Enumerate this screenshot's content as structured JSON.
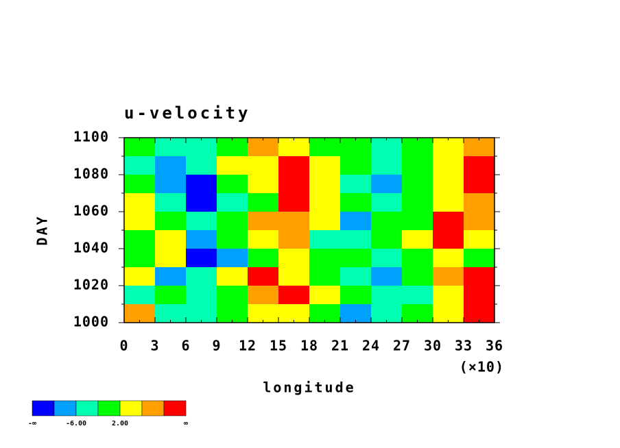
{
  "chart_data": {
    "type": "contour",
    "title": "u-velocity",
    "x_label": "longitude",
    "y_label": "DAY",
    "x_multiplier": "(×10)",
    "xlim": [
      0,
      36
    ],
    "xticks": [
      0,
      3,
      6,
      9,
      12,
      15,
      18,
      21,
      24,
      27,
      30,
      33,
      36
    ],
    "ylim": [
      1000,
      1100
    ],
    "yticks": [
      1000,
      1020,
      1040,
      1060,
      1080,
      1100
    ],
    "x": [
      1.5,
      4.5,
      7.5,
      10.5,
      13.5,
      16.5,
      19.5,
      22.5,
      25.5,
      28.5,
      31.5,
      34.5
    ],
    "y": [
      1095,
      1085,
      1075,
      1065,
      1055,
      1045,
      1035,
      1025,
      1015,
      1005
    ],
    "z": [
      [
        0,
        -4,
        -3,
        1,
        6,
        4,
        0,
        -2,
        -3,
        -1,
        3,
        8
      ],
      [
        -4,
        -8,
        -4,
        2,
        5,
        11,
        3,
        -2,
        -6,
        -1,
        2,
        12
      ],
      [
        1,
        -8,
        -11,
        -2,
        4,
        11,
        2,
        -3,
        -9,
        -2,
        3,
        12
      ],
      [
        2,
        -4,
        -11,
        -6,
        1,
        12,
        4,
        -2,
        -5,
        -1,
        2,
        6
      ],
      [
        4,
        -2,
        -3,
        -1,
        8,
        9,
        2,
        -8,
        -2,
        1,
        11,
        7
      ],
      [
        0,
        3,
        -8,
        -2,
        3,
        8,
        -3,
        -6,
        -2,
        4,
        11,
        3
      ],
      [
        -2,
        2,
        -12,
        -8,
        1,
        3,
        -2,
        -2,
        -3,
        1,
        4,
        0
      ],
      [
        3,
        -10,
        -4,
        2,
        11,
        4,
        1,
        -4,
        -8,
        -2,
        7,
        12
      ],
      [
        -4,
        -2,
        -4,
        -2,
        8,
        13,
        2,
        -2,
        -6,
        -3,
        4,
        10
      ],
      [
        6,
        -3,
        -6,
        -2,
        2,
        4,
        1,
        -8,
        -4,
        -1,
        3,
        12
      ]
    ],
    "levels": [
      -10,
      -6,
      -2,
      2,
      6,
      10
    ],
    "colors": [
      "#0000ff",
      "#00a0ff",
      "#00ffb0",
      "#00ff00",
      "#ffff00",
      "#ffa000",
      "#ff0000"
    ],
    "colorbar_labels": [
      "-∞",
      {
        "value": -6,
        "label": "-6.00"
      },
      {
        "value": 2,
        "label": "2.00"
      },
      "∞"
    ]
  }
}
